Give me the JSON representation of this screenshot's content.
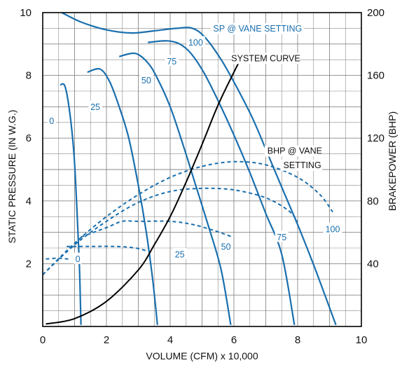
{
  "chart_data": {
    "type": "line",
    "xlabel": "VOLUME (CFM) x 10,000",
    "ylabel_left": "STATIC PRESSURE (IN W.G.)",
    "ylabel_right": "BRAKEPOWER (BHP)",
    "xlim": [
      0,
      10
    ],
    "ylim_left": [
      0,
      10
    ],
    "ylim_right": [
      0,
      200
    ],
    "x_ticks": [
      "0",
      "2",
      "4",
      "6",
      "8",
      "10"
    ],
    "y_left_ticks": [
      "2",
      "4",
      "6",
      "8",
      "10"
    ],
    "y_right_ticks": [
      "40",
      "80",
      "120",
      "160",
      "200"
    ],
    "grid": true,
    "colors": {
      "sp": "#1a6fae",
      "bhp": "#1a6fae",
      "system": "#000000",
      "grid": "#888888",
      "label_bg": "#ffffff"
    },
    "annotations": {
      "sp_title": "SP @ VANE SETTING",
      "bhp_title_1": "BHP @ VANE",
      "bhp_title_2": "SETTING",
      "system_label": "SYSTEM CURVE"
    },
    "sp_series": [
      {
        "name": "100",
        "label_x": 4.8,
        "label_y": 9.05,
        "points": [
          [
            0.6,
            10.0
          ],
          [
            1.2,
            9.7
          ],
          [
            2.0,
            9.45
          ],
          [
            2.8,
            9.35
          ],
          [
            3.5,
            9.42
          ],
          [
            4.2,
            9.5
          ],
          [
            4.7,
            9.5
          ],
          [
            5.1,
            9.2
          ],
          [
            5.6,
            8.5
          ],
          [
            6.1,
            7.6
          ],
          [
            6.6,
            6.6
          ],
          [
            7.1,
            5.4
          ],
          [
            7.6,
            4.2
          ],
          [
            8.1,
            3.0
          ],
          [
            8.6,
            1.7
          ],
          [
            9.2,
            0.05
          ]
        ]
      },
      {
        "name": "75",
        "label_x": 4.05,
        "label_y": 8.45,
        "points": [
          [
            3.3,
            9.05
          ],
          [
            3.9,
            9.1
          ],
          [
            4.3,
            9.0
          ],
          [
            4.65,
            8.7
          ],
          [
            5.05,
            8.1
          ],
          [
            5.5,
            7.2
          ],
          [
            6.0,
            6.1
          ],
          [
            6.5,
            4.9
          ],
          [
            7.0,
            3.6
          ],
          [
            7.5,
            2.3
          ],
          [
            7.9,
            0.05
          ]
        ]
      },
      {
        "name": "50",
        "label_x": 3.25,
        "label_y": 7.85,
        "points": [
          [
            2.4,
            8.6
          ],
          [
            2.9,
            8.7
          ],
          [
            3.3,
            8.4
          ],
          [
            3.6,
            7.9
          ],
          [
            4.0,
            7.0
          ],
          [
            4.4,
            5.8
          ],
          [
            4.8,
            4.5
          ],
          [
            5.2,
            3.2
          ],
          [
            5.6,
            1.8
          ],
          [
            5.9,
            0.05
          ]
        ]
      },
      {
        "name": "25",
        "label_x": 1.65,
        "label_y": 7.0,
        "points": [
          [
            1.4,
            8.1
          ],
          [
            1.8,
            8.2
          ],
          [
            2.1,
            7.8
          ],
          [
            2.4,
            7.0
          ],
          [
            2.7,
            6.0
          ],
          [
            3.0,
            4.5
          ],
          [
            3.25,
            3.0
          ],
          [
            3.45,
            1.5
          ],
          [
            3.6,
            0.05
          ]
        ]
      },
      {
        "name": "0",
        "label_x": 0.28,
        "label_y": 6.55,
        "points": [
          [
            0.55,
            7.7
          ],
          [
            0.7,
            7.65
          ],
          [
            0.85,
            6.8
          ],
          [
            0.98,
            5.5
          ],
          [
            1.07,
            3.8
          ],
          [
            1.15,
            2.0
          ],
          [
            1.2,
            0.05
          ]
        ]
      }
    ],
    "bhp_series": [
      {
        "name": "100",
        "label_x": 9.1,
        "label_y": 62,
        "points": [
          [
            0.0,
            33
          ],
          [
            1.0,
            53
          ],
          [
            2.0,
            70
          ],
          [
            3.0,
            84
          ],
          [
            4.0,
            95
          ],
          [
            5.0,
            102
          ],
          [
            6.0,
            105
          ],
          [
            7.0,
            103
          ],
          [
            8.0,
            95
          ],
          [
            8.7,
            84
          ],
          [
            9.1,
            73
          ]
        ]
      },
      {
        "name": "75",
        "label_x": 7.5,
        "label_y": 57,
        "points": [
          [
            0.0,
            33
          ],
          [
            1.0,
            52
          ],
          [
            2.0,
            67
          ],
          [
            3.0,
            79
          ],
          [
            4.0,
            86
          ],
          [
            5.0,
            88
          ],
          [
            6.0,
            87
          ],
          [
            7.0,
            82
          ],
          [
            7.7,
            74
          ],
          [
            8.0,
            67
          ]
        ]
      },
      {
        "name": "50",
        "label_x": 5.75,
        "label_y": 51,
        "points": [
          [
            1.2,
            57
          ],
          [
            2.0,
            63
          ],
          [
            2.5,
            67
          ],
          [
            3.0,
            67
          ],
          [
            4.0,
            67
          ],
          [
            4.7,
            65
          ],
          [
            5.4,
            61
          ],
          [
            5.95,
            57
          ]
        ]
      },
      {
        "name": "25",
        "label_x": 4.3,
        "label_y": 46,
        "points": [
          [
            0.75,
            51
          ],
          [
            1.5,
            51
          ],
          [
            2.3,
            51
          ],
          [
            2.9,
            50
          ],
          [
            3.3,
            48
          ]
        ]
      },
      {
        "name": "0",
        "label_x": 1.1,
        "label_y": 43,
        "points": [
          [
            0.1,
            43
          ],
          [
            0.45,
            43.5
          ],
          [
            0.8,
            43
          ]
        ]
      }
    ],
    "system_curve": {
      "points": [
        [
          0.1,
          0.08
        ],
        [
          1.0,
          0.25
        ],
        [
          2.0,
          0.8
        ],
        [
          3.0,
          1.8
        ],
        [
          3.5,
          2.6
        ],
        [
          4.0,
          3.5
        ],
        [
          4.5,
          4.6
        ],
        [
          5.0,
          5.8
        ],
        [
          5.5,
          7.05
        ],
        [
          6.0,
          8.1
        ],
        [
          6.2,
          8.5
        ]
      ],
      "label_x": 7.0,
      "label_y": 8.45
    }
  }
}
